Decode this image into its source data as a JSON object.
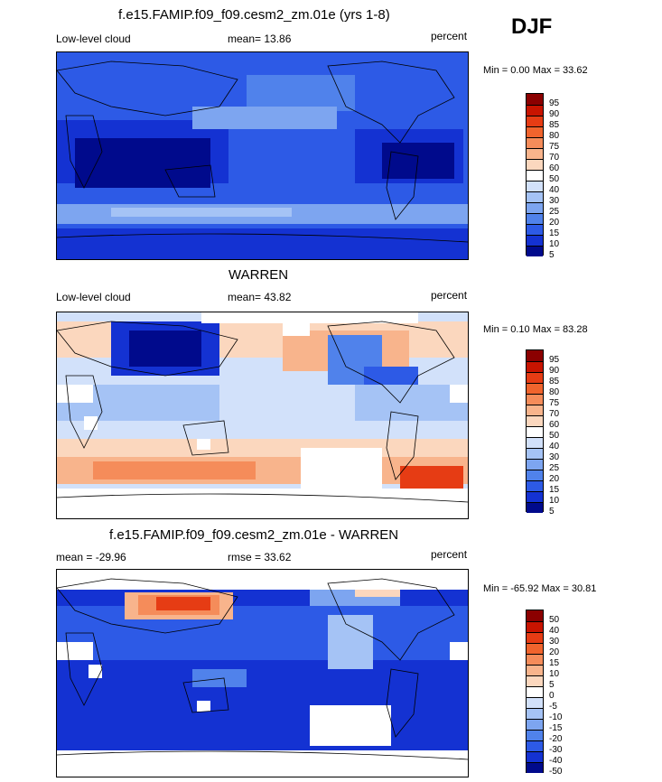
{
  "season": "DJF",
  "panels": [
    {
      "title": "f.e15.FAMIP.f09_f09.cesm2_zm.01e (yrs 1-8)",
      "left_label": "Low-level cloud",
      "center_label": "mean=  13.86",
      "right_label": "percent",
      "range_text": "Min =   0.00 Max =  33.62",
      "colorbar": {
        "labels": [
          "95",
          "90",
          "85",
          "80",
          "75",
          "70",
          "60",
          "50",
          "40",
          "30",
          "25",
          "20",
          "15",
          "10",
          "5"
        ],
        "colors": [
          "#8b0000",
          "#c81400",
          "#e63c14",
          "#f0642d",
          "#f58c5a",
          "#f8b48c",
          "#fbd7be",
          "#ffffff",
          "#d2e1fa",
          "#a5c3f5",
          "#7da5f0",
          "#5082eb",
          "#2d5ae6",
          "#1432d2",
          "#000a8c"
        ]
      }
    },
    {
      "title": "WARREN",
      "left_label": "Low-level cloud",
      "center_label": "mean=  43.82",
      "right_label": "percent",
      "range_text": "Min =   0.10 Max =  83.28",
      "colorbar": {
        "labels": [
          "95",
          "90",
          "85",
          "80",
          "75",
          "70",
          "60",
          "50",
          "40",
          "30",
          "25",
          "20",
          "15",
          "10",
          "5"
        ],
        "colors": [
          "#8b0000",
          "#c81400",
          "#e63c14",
          "#f0642d",
          "#f58c5a",
          "#f8b48c",
          "#fbd7be",
          "#ffffff",
          "#d2e1fa",
          "#a5c3f5",
          "#7da5f0",
          "#5082eb",
          "#2d5ae6",
          "#1432d2",
          "#000a8c"
        ]
      }
    },
    {
      "title": "f.e15.FAMIP.f09_f09.cesm2_zm.01e - WARREN",
      "left_label": "mean = -29.96",
      "center_label": "rmse =  33.62",
      "right_label": "percent",
      "range_text": "Min = -65.92 Max =  30.81",
      "colorbar": {
        "labels": [
          "50",
          "40",
          "30",
          "20",
          "15",
          "10",
          "5",
          "0",
          "-5",
          "-10",
          "-15",
          "-20",
          "-30",
          "-40",
          "-50"
        ],
        "colors": [
          "#8b0000",
          "#c81400",
          "#e63c14",
          "#f0642d",
          "#f58c5a",
          "#f8b48c",
          "#fbd7be",
          "#ffffff",
          "#d2e1fa",
          "#a5c3f5",
          "#7da5f0",
          "#5082eb",
          "#2d5ae6",
          "#1432d2",
          "#000a8c"
        ]
      }
    }
  ],
  "chart_data": [
    {
      "type": "heatmap",
      "title": "f.e15.FAMIP.f09_f09.cesm2_zm.01e (yrs 1-8)",
      "variable": "Low-level cloud",
      "units": "percent",
      "mean": 13.86,
      "min": 0.0,
      "max": 33.62
    },
    {
      "type": "heatmap",
      "title": "WARREN",
      "variable": "Low-level cloud",
      "units": "percent",
      "mean": 43.82,
      "min": 0.1,
      "max": 83.28
    },
    {
      "type": "heatmap",
      "title": "f.e15.FAMIP.f09_f09.cesm2_zm.01e - WARREN",
      "units": "percent",
      "mean": -29.96,
      "rmse": 33.62,
      "min": -65.92,
      "max": 30.81
    }
  ]
}
